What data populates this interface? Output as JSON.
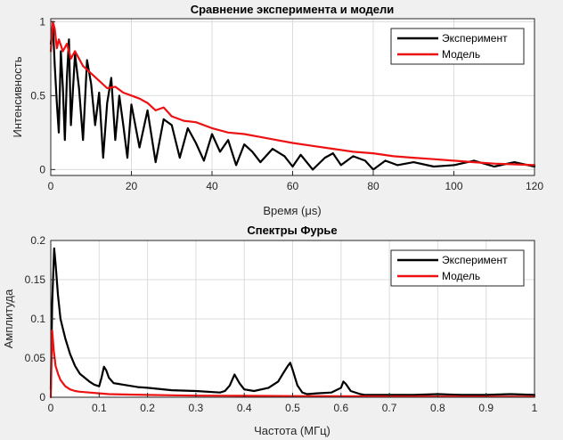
{
  "colors": {
    "figure_bg": "#f0f0f0",
    "axes_bg": "#ffffff",
    "experiment": "#000000",
    "model": "#ee1111",
    "grid": "#dcdcdc"
  },
  "chart_data": [
    {
      "type": "line",
      "title": "Сравнение эксперимента и модели",
      "xlabel": "Время (μs)",
      "ylabel": "Интенсивность",
      "xlim": [
        0,
        120
      ],
      "ylim": [
        -0.04,
        1.02
      ],
      "xticks": [
        0,
        20,
        40,
        60,
        80,
        100,
        120
      ],
      "xtick_labels": [
        "0",
        "20",
        "40",
        "60",
        "80",
        "100",
        "120"
      ],
      "yticks": [
        0,
        0.5,
        1
      ],
      "ytick_labels": [
        "0",
        "0.5",
        "1"
      ],
      "grid": true,
      "legend": "top-right",
      "series": [
        {
          "name": "Эксперимент",
          "color": "#000000",
          "x": [
            0,
            0.5,
            1,
            1.5,
            2,
            2.5,
            3,
            3.5,
            4,
            4.5,
            5,
            6,
            7,
            8,
            9,
            10,
            11,
            12,
            13,
            14,
            15,
            16,
            17,
            18,
            19,
            20,
            22,
            24,
            26,
            28,
            30,
            32,
            34,
            36,
            38,
            40,
            42,
            44,
            46,
            48,
            50,
            52,
            55,
            58,
            60,
            62,
            65,
            68,
            70,
            72,
            75,
            78,
            80,
            83,
            86,
            90,
            95,
            100,
            105,
            110,
            115,
            120
          ],
          "y": [
            0.85,
            0.98,
            0.7,
            0.45,
            0.25,
            0.8,
            0.55,
            0.2,
            0.62,
            0.88,
            0.3,
            0.78,
            0.55,
            0.2,
            0.74,
            0.58,
            0.3,
            0.52,
            0.08,
            0.45,
            0.62,
            0.2,
            0.5,
            0.3,
            0.08,
            0.44,
            0.15,
            0.4,
            0.05,
            0.34,
            0.3,
            0.08,
            0.28,
            0.18,
            0.06,
            0.24,
            0.12,
            0.2,
            0.03,
            0.17,
            0.12,
            0.05,
            0.14,
            0.09,
            0.02,
            0.1,
            0.0,
            0.08,
            0.11,
            0.03,
            0.09,
            0.06,
            0.0,
            0.06,
            0.03,
            0.05,
            0.02,
            0.03,
            0.06,
            0.02,
            0.05,
            0.02
          ]
        },
        {
          "name": "Модель",
          "color": "#ee1111",
          "x": [
            0,
            0.5,
            1,
            1.5,
            2,
            3,
            4,
            5,
            6,
            8,
            10,
            12,
            14,
            16,
            18,
            20,
            22,
            24,
            26,
            28,
            30,
            33,
            36,
            40,
            44,
            48,
            52,
            56,
            60,
            65,
            70,
            75,
            80,
            85,
            90,
            95,
            100,
            105,
            110,
            115,
            120
          ],
          "y": [
            0.8,
            1.0,
            0.95,
            0.82,
            0.88,
            0.8,
            0.85,
            0.75,
            0.8,
            0.7,
            0.65,
            0.6,
            0.55,
            0.56,
            0.52,
            0.5,
            0.48,
            0.45,
            0.4,
            0.42,
            0.36,
            0.33,
            0.32,
            0.28,
            0.25,
            0.24,
            0.22,
            0.2,
            0.18,
            0.16,
            0.14,
            0.12,
            0.11,
            0.09,
            0.08,
            0.07,
            0.06,
            0.05,
            0.04,
            0.035,
            0.03
          ]
        }
      ]
    },
    {
      "type": "line",
      "title": "Спектры Фурье",
      "xlabel": "Частота (МГц)",
      "ylabel": "Амплитуда",
      "xlim": [
        0,
        1
      ],
      "ylim": [
        0,
        0.2
      ],
      "xticks": [
        0,
        0.1,
        0.2,
        0.3,
        0.4,
        0.5,
        0.6,
        0.7,
        0.8,
        0.9,
        1
      ],
      "xtick_labels": [
        "0",
        "0.1",
        "0.2",
        "0.3",
        "0.4",
        "0.5",
        "0.6",
        "0.7",
        "0.8",
        "0.9",
        "1"
      ],
      "yticks": [
        0,
        0.05,
        0.1,
        0.15,
        0.2
      ],
      "ytick_labels": [
        "0",
        "0.05",
        "0.1",
        "0.15",
        "0.2"
      ],
      "grid": true,
      "legend": "top-right",
      "series": [
        {
          "name": "Эксперимент",
          "color": "#000000",
          "x": [
            0,
            0.003,
            0.007,
            0.01,
            0.015,
            0.02,
            0.03,
            0.04,
            0.05,
            0.06,
            0.07,
            0.08,
            0.09,
            0.1,
            0.105,
            0.11,
            0.115,
            0.12,
            0.13,
            0.14,
            0.15,
            0.18,
            0.2,
            0.25,
            0.3,
            0.35,
            0.36,
            0.37,
            0.38,
            0.39,
            0.4,
            0.42,
            0.45,
            0.47,
            0.48,
            0.49,
            0.495,
            0.5,
            0.51,
            0.52,
            0.53,
            0.55,
            0.58,
            0.6,
            0.605,
            0.61,
            0.62,
            0.64,
            0.65,
            0.7,
            0.75,
            0.8,
            0.85,
            0.9,
            0.95,
            1.0
          ],
          "y": [
            0.01,
            0.12,
            0.19,
            0.17,
            0.13,
            0.1,
            0.075,
            0.055,
            0.04,
            0.03,
            0.025,
            0.02,
            0.016,
            0.014,
            0.025,
            0.039,
            0.034,
            0.025,
            0.018,
            0.017,
            0.016,
            0.013,
            0.012,
            0.009,
            0.008,
            0.006,
            0.008,
            0.015,
            0.029,
            0.018,
            0.01,
            0.008,
            0.012,
            0.02,
            0.03,
            0.04,
            0.044,
            0.035,
            0.015,
            0.006,
            0.004,
            0.005,
            0.006,
            0.012,
            0.02,
            0.017,
            0.008,
            0.004,
            0.003,
            0.003,
            0.003,
            0.004,
            0.003,
            0.003,
            0.004,
            0.003
          ]
        },
        {
          "name": "Модель",
          "color": "#ee1111",
          "x": [
            0,
            0.003,
            0.006,
            0.01,
            0.015,
            0.02,
            0.025,
            0.03,
            0.04,
            0.05,
            0.06,
            0.08,
            0.1,
            0.12,
            0.15,
            0.2,
            0.25,
            0.3,
            0.4,
            0.5,
            0.6,
            0.7,
            0.8,
            0.9,
            1.0
          ],
          "y": [
            0.0,
            0.085,
            0.06,
            0.04,
            0.03,
            0.022,
            0.018,
            0.014,
            0.01,
            0.008,
            0.007,
            0.006,
            0.005,
            0.004,
            0.0035,
            0.003,
            0.0025,
            0.002,
            0.0018,
            0.0015,
            0.0012,
            0.001,
            0.0009,
            0.0008,
            0.0007
          ]
        }
      ]
    }
  ]
}
